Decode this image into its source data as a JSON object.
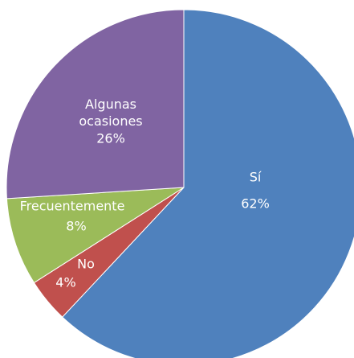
{
  "chart_data": {
    "type": "pie",
    "categories": [
      "Sí",
      "No",
      "Frecuentemente",
      "Algunas ocasiones"
    ],
    "values": [
      62,
      4,
      8,
      26
    ],
    "value_labels": [
      "62%",
      "4%",
      "8%",
      "26%"
    ],
    "colors": [
      "#4f81bd",
      "#c0504d",
      "#9bbb59",
      "#8064a2"
    ],
    "start_angle": 0,
    "direction": "clockwise"
  }
}
